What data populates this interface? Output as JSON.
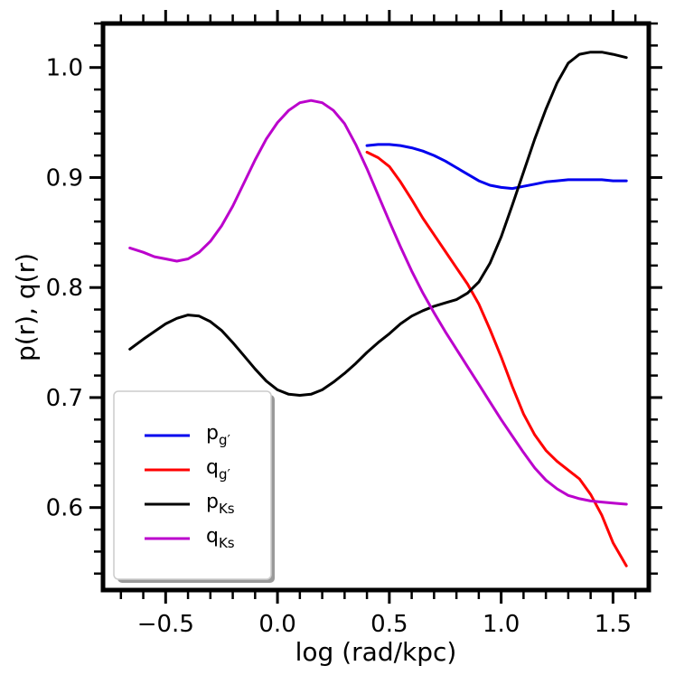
{
  "chart_data": {
    "type": "line",
    "title": "",
    "xlabel": "log (rad/kpc)",
    "ylabel": "p(r), q(r)",
    "xlim": [
      -0.78,
      1.66
    ],
    "ylim": [
      0.525,
      1.04
    ],
    "xticks": [
      -0.5,
      0.0,
      0.5,
      1.0,
      1.5
    ],
    "xtick_labels": [
      "−0.5",
      "0.0",
      "0.5",
      "1.0",
      "1.5"
    ],
    "yticks": [
      0.6,
      0.7,
      0.8,
      0.9,
      1.0
    ],
    "ytick_labels": [
      "0.6",
      "0.7",
      "0.8",
      "0.9",
      "1.0"
    ],
    "grid": false,
    "legend_position": "lower-left",
    "series": [
      {
        "name": "p_g'",
        "legend_main": "p",
        "legend_sub": "g′",
        "color": "#0000ee",
        "x": [
          0.4,
          0.45,
          0.5,
          0.55,
          0.6,
          0.65,
          0.7,
          0.75,
          0.8,
          0.85,
          0.9,
          0.95,
          1.0,
          1.05,
          1.1,
          1.15,
          1.2,
          1.25,
          1.3,
          1.35,
          1.4,
          1.45,
          1.5,
          1.56
        ],
        "y": [
          0.929,
          0.93,
          0.93,
          0.929,
          0.927,
          0.924,
          0.92,
          0.915,
          0.909,
          0.903,
          0.897,
          0.893,
          0.891,
          0.89,
          0.892,
          0.894,
          0.896,
          0.897,
          0.898,
          0.898,
          0.898,
          0.898,
          0.897,
          0.897
        ]
      },
      {
        "name": "q_g'",
        "legend_main": "q",
        "legend_sub": "g′",
        "color": "#ff0000",
        "x": [
          0.4,
          0.45,
          0.5,
          0.55,
          0.6,
          0.65,
          0.7,
          0.75,
          0.8,
          0.85,
          0.9,
          0.95,
          1.0,
          1.05,
          1.1,
          1.15,
          1.2,
          1.25,
          1.3,
          1.35,
          1.4,
          1.45,
          1.5,
          1.56
        ],
        "y": [
          0.923,
          0.918,
          0.91,
          0.896,
          0.88,
          0.863,
          0.848,
          0.833,
          0.818,
          0.803,
          0.785,
          0.762,
          0.737,
          0.71,
          0.685,
          0.666,
          0.652,
          0.642,
          0.634,
          0.626,
          0.612,
          0.593,
          0.568,
          0.547
        ]
      },
      {
        "name": "p_Ks",
        "legend_main": "p",
        "legend_sub": "Ks",
        "color": "#000000",
        "x": [
          -0.66,
          -0.6,
          -0.55,
          -0.5,
          -0.45,
          -0.4,
          -0.35,
          -0.3,
          -0.25,
          -0.2,
          -0.15,
          -0.1,
          -0.05,
          0.0,
          0.05,
          0.1,
          0.15,
          0.2,
          0.25,
          0.3,
          0.35,
          0.4,
          0.45,
          0.5,
          0.55,
          0.6,
          0.65,
          0.7,
          0.75,
          0.8,
          0.85,
          0.9,
          0.95,
          1.0,
          1.05,
          1.1,
          1.15,
          1.2,
          1.25,
          1.3,
          1.35,
          1.4,
          1.45,
          1.5,
          1.56
        ],
        "y": [
          0.744,
          0.753,
          0.76,
          0.767,
          0.772,
          0.775,
          0.774,
          0.769,
          0.761,
          0.75,
          0.738,
          0.726,
          0.715,
          0.707,
          0.703,
          0.702,
          0.703,
          0.707,
          0.714,
          0.722,
          0.731,
          0.741,
          0.75,
          0.758,
          0.767,
          0.774,
          0.779,
          0.783,
          0.786,
          0.789,
          0.795,
          0.805,
          0.822,
          0.846,
          0.875,
          0.905,
          0.935,
          0.962,
          0.986,
          1.004,
          1.012,
          1.014,
          1.014,
          1.012,
          1.009
        ]
      },
      {
        "name": "q_Ks",
        "legend_main": "q",
        "legend_sub": "Ks",
        "color": "#bb00cc",
        "x": [
          -0.66,
          -0.6,
          -0.55,
          -0.5,
          -0.45,
          -0.4,
          -0.35,
          -0.3,
          -0.25,
          -0.2,
          -0.15,
          -0.1,
          -0.05,
          0.0,
          0.05,
          0.1,
          0.15,
          0.2,
          0.25,
          0.3,
          0.35,
          0.4,
          0.45,
          0.5,
          0.55,
          0.6,
          0.65,
          0.7,
          0.75,
          0.8,
          0.85,
          0.9,
          0.95,
          1.0,
          1.05,
          1.1,
          1.15,
          1.2,
          1.25,
          1.3,
          1.35,
          1.4,
          1.45,
          1.5,
          1.56
        ],
        "y": [
          0.836,
          0.832,
          0.828,
          0.826,
          0.824,
          0.826,
          0.832,
          0.842,
          0.856,
          0.874,
          0.895,
          0.916,
          0.935,
          0.95,
          0.961,
          0.968,
          0.97,
          0.968,
          0.961,
          0.949,
          0.93,
          0.908,
          0.884,
          0.86,
          0.837,
          0.815,
          0.795,
          0.777,
          0.76,
          0.744,
          0.728,
          0.712,
          0.696,
          0.68,
          0.665,
          0.65,
          0.636,
          0.625,
          0.617,
          0.611,
          0.608,
          0.606,
          0.605,
          0.604,
          0.603
        ]
      }
    ]
  }
}
